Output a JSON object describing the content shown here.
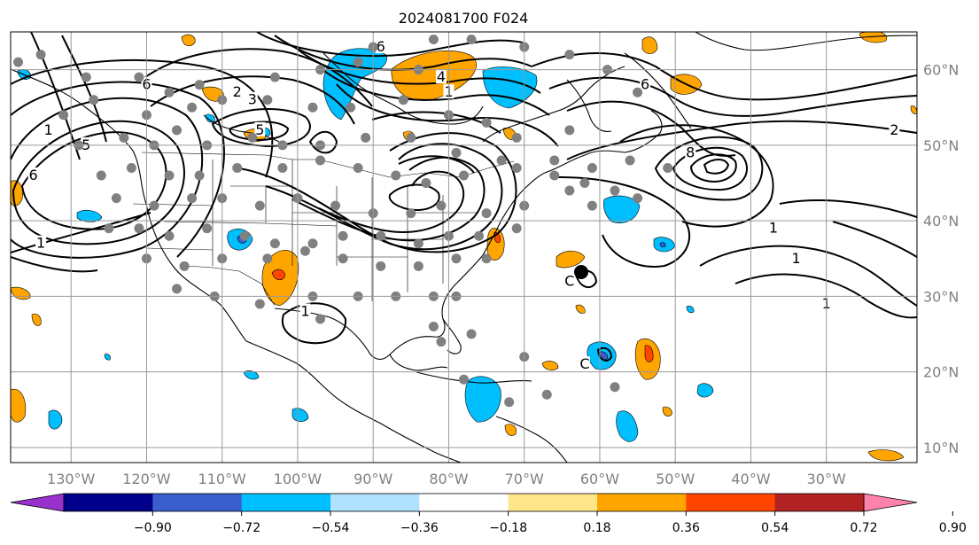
{
  "title": "2024081700 F024",
  "map": {
    "lon_range": [
      -138,
      -18
    ],
    "lat_range": [
      8,
      65
    ],
    "lon_ticks": [
      {
        "value": -130,
        "label": "130°W"
      },
      {
        "value": -120,
        "label": "120°W"
      },
      {
        "value": -110,
        "label": "110°W"
      },
      {
        "value": -100,
        "label": "100°W"
      },
      {
        "value": -90,
        "label": "90°W"
      },
      {
        "value": -80,
        "label": "80°W"
      },
      {
        "value": -70,
        "label": "70°W"
      },
      {
        "value": -60,
        "label": "60°W"
      },
      {
        "value": -50,
        "label": "50°W"
      },
      {
        "value": -40,
        "label": "40°W"
      },
      {
        "value": -30,
        "label": "30°W"
      }
    ],
    "lat_ticks": [
      {
        "value": 10,
        "label": "10°N"
      },
      {
        "value": 20,
        "label": "20°N"
      },
      {
        "value": 30,
        "label": "30°N"
      },
      {
        "value": 40,
        "label": "40°N"
      },
      {
        "value": 50,
        "label": "50°N"
      },
      {
        "value": 60,
        "label": "60°N"
      }
    ],
    "grid": true
  },
  "colorbar": {
    "ticks": [
      "−0.90",
      "−0.72",
      "−0.54",
      "−0.36",
      "−0.18",
      "0.18",
      "0.36",
      "0.54",
      "0.72",
      "0.90"
    ],
    "colors": [
      "#9932cc",
      "#00008b",
      "#3a5fcd",
      "#00bfff",
      "#b0e2ff",
      "#ffffff",
      "#ffe68a",
      "#ffa500",
      "#ff4500",
      "#b22222",
      "#ff82ab"
    ],
    "extend": "both"
  },
  "contour_labels": [
    {
      "text": "6",
      "lon": -120,
      "lat": 58
    },
    {
      "text": "2",
      "lon": -108,
      "lat": 57
    },
    {
      "text": "3",
      "lon": -106,
      "lat": 56
    },
    {
      "text": "5",
      "lon": -105,
      "lat": 52
    },
    {
      "text": "1",
      "lon": -133,
      "lat": 52
    },
    {
      "text": "5",
      "lon": -128,
      "lat": 50
    },
    {
      "text": "6",
      "lon": -135,
      "lat": 46
    },
    {
      "text": "1",
      "lon": -134,
      "lat": 37
    },
    {
      "text": "6",
      "lon": -89,
      "lat": 63
    },
    {
      "text": "4",
      "lon": -81,
      "lat": 59
    },
    {
      "text": "1",
      "lon": -80,
      "lat": 57
    },
    {
      "text": "6",
      "lon": -54,
      "lat": 58
    },
    {
      "text": "8",
      "lon": -48,
      "lat": 49
    },
    {
      "text": "2",
      "lon": -21,
      "lat": 52
    },
    {
      "text": "1",
      "lon": -37,
      "lat": 39
    },
    {
      "text": "1",
      "lon": -34,
      "lat": 35
    },
    {
      "text": "1",
      "lon": -30,
      "lat": 29
    },
    {
      "text": "1",
      "lon": -99,
      "lat": 28
    },
    {
      "text": "C",
      "lon": -64,
      "lat": 32
    },
    {
      "text": "C",
      "lon": -62,
      "lat": 21
    }
  ],
  "stations": [
    [
      -137,
      61
    ],
    [
      -134,
      62
    ],
    [
      -128,
      59
    ],
    [
      -121,
      59
    ],
    [
      -117,
      57
    ],
    [
      -113,
      58
    ],
    [
      -103,
      59
    ],
    [
      -97,
      60
    ],
    [
      -92,
      61
    ],
    [
      -90,
      63
    ],
    [
      -84,
      60
    ],
    [
      -82,
      64
    ],
    [
      -77,
      64
    ],
    [
      -70,
      63
    ],
    [
      -64,
      62
    ],
    [
      -59,
      60
    ],
    [
      -55,
      57
    ],
    [
      -131,
      54
    ],
    [
      -127,
      56
    ],
    [
      -120,
      54
    ],
    [
      -114,
      55
    ],
    [
      -110,
      56
    ],
    [
      -104,
      56
    ],
    [
      -98,
      55
    ],
    [
      -93,
      55
    ],
    [
      -86,
      56
    ],
    [
      -80,
      54
    ],
    [
      -75,
      53
    ],
    [
      -71,
      51
    ],
    [
      -64,
      52
    ],
    [
      -129,
      50
    ],
    [
      -123,
      51
    ],
    [
      -119,
      50
    ],
    [
      -116,
      52
    ],
    [
      -112,
      50
    ],
    [
      -106,
      51
    ],
    [
      -102,
      50
    ],
    [
      -97,
      50
    ],
    [
      -91,
      51
    ],
    [
      -85,
      51
    ],
    [
      -79,
      49
    ],
    [
      -73,
      48
    ],
    [
      -66,
      48
    ],
    [
      -61,
      47
    ],
    [
      -56,
      48
    ],
    [
      -51,
      47
    ],
    [
      -126,
      46
    ],
    [
      -122,
      47
    ],
    [
      -117,
      46
    ],
    [
      -113,
      46
    ],
    [
      -108,
      47
    ],
    [
      -102,
      47
    ],
    [
      -97,
      48
    ],
    [
      -92,
      47
    ],
    [
      -87,
      46
    ],
    [
      -83,
      45
    ],
    [
      -78,
      46
    ],
    [
      -71,
      47
    ],
    [
      -66,
      46
    ],
    [
      -62,
      45
    ],
    [
      -58,
      44
    ],
    [
      -124,
      43
    ],
    [
      -119,
      42
    ],
    [
      -114,
      43
    ],
    [
      -110,
      43
    ],
    [
      -105,
      42
    ],
    [
      -100,
      43
    ],
    [
      -95,
      42
    ],
    [
      -90,
      41
    ],
    [
      -85,
      41
    ],
    [
      -81,
      42
    ],
    [
      -75,
      41
    ],
    [
      -70,
      42
    ],
    [
      -64,
      44
    ],
    [
      -61,
      42
    ],
    [
      -55,
      43
    ],
    [
      -125,
      39
    ],
    [
      -121,
      39
    ],
    [
      -117,
      38
    ],
    [
      -112,
      39
    ],
    [
      -107,
      38
    ],
    [
      -103,
      37
    ],
    [
      -98,
      37
    ],
    [
      -94,
      38
    ],
    [
      -89,
      38
    ],
    [
      -84,
      37
    ],
    [
      -80,
      38
    ],
    [
      -76,
      38
    ],
    [
      -71,
      39
    ],
    [
      -120,
      35
    ],
    [
      -115,
      34
    ],
    [
      -110,
      35
    ],
    [
      -104,
      35
    ],
    [
      -99,
      36
    ],
    [
      -94,
      35
    ],
    [
      -89,
      34
    ],
    [
      -84,
      34
    ],
    [
      -79,
      35
    ],
    [
      -75,
      35
    ],
    [
      -116,
      31
    ],
    [
      -111,
      30
    ],
    [
      -105,
      29
    ],
    [
      -98,
      30
    ],
    [
      -92,
      30
    ],
    [
      -87,
      30
    ],
    [
      -82,
      30
    ],
    [
      -79,
      30
    ],
    [
      -97,
      27
    ],
    [
      -82,
      26
    ],
    [
      -81,
      24
    ],
    [
      -77,
      25
    ],
    [
      -70,
      22
    ],
    [
      -78,
      19
    ],
    [
      -67,
      17
    ],
    [
      -72,
      16
    ],
    [
      -58,
      18
    ]
  ]
}
